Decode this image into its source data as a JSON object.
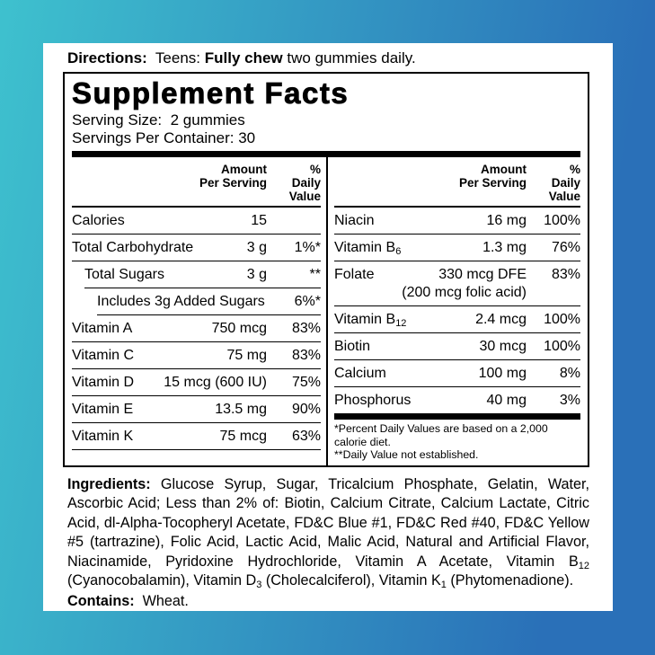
{
  "colors": {
    "gradient_left_teal": "#3EC1CE",
    "gradient_right_blue": "#2A70B8",
    "panel_background": "#FFFFFF",
    "text": "#000000"
  },
  "directions": {
    "label": "Directions:",
    "pre": "  Teens: ",
    "emphasis": "Fully chew",
    "post": " two gummies daily."
  },
  "sf": {
    "title": "Supplement Facts",
    "serving_size": "Serving Size:  2 gummies",
    "servings_per_container": "Servings Per Container: 30",
    "header": {
      "amount1": "Amount",
      "amount2": "Per Serving",
      "dv1": "% Daily",
      "dv2": "Value"
    },
    "left_rows": [
      {
        "name": "Calories",
        "amount": "15",
        "dv": "",
        "indent": 0
      },
      {
        "name": "Total Carbohydrate",
        "amount": "3 g",
        "dv": "1%*",
        "indent": 0
      },
      {
        "name": "Total Sugars",
        "amount": "3 g",
        "dv": "**",
        "indent": 1
      },
      {
        "name": "Includes 3g Added Sugars",
        "amount": "",
        "dv": "6%*",
        "indent": 2
      },
      {
        "name": "Vitamin A",
        "amount": "750 mcg",
        "dv": "83%",
        "indent": 0
      },
      {
        "name": "Vitamin C",
        "amount": "75 mg",
        "dv": "83%",
        "indent": 0
      },
      {
        "name": "Vitamin D",
        "amount": "15 mcg (600 IU)",
        "dv": "75%",
        "indent": 0
      },
      {
        "name": "Vitamin E",
        "amount": "13.5 mg",
        "dv": "90%",
        "indent": 0
      },
      {
        "name": "Vitamin K",
        "amount": "75 mcg",
        "dv": "63%",
        "indent": 0
      }
    ],
    "right_rows": [
      {
        "name": "Niacin",
        "amount": "16 mg",
        "dv": "100%"
      },
      {
        "name": "Vitamin B",
        "sub": "6",
        "amount": "1.3 mg",
        "dv": "76%"
      },
      {
        "name": "Folate",
        "amount": "330 mcg DFE",
        "amount2": "(200 mcg folic acid)",
        "dv": "83%"
      },
      {
        "name": "Vitamin B",
        "sub": "12",
        "amount": "2.4 mcg",
        "dv": "100%"
      },
      {
        "name": "Biotin",
        "amount": "30 mcg",
        "dv": "100%"
      },
      {
        "name": "Calcium",
        "amount": "100 mg",
        "dv": "8%"
      },
      {
        "name": "Phosphorus",
        "amount": "40 mg",
        "dv": "3%"
      }
    ],
    "footnotes": [
      "*Percent Daily Values are based on a 2,000 calorie diet.",
      "**Daily Value not established."
    ]
  },
  "ingredients": {
    "label": "Ingredients:",
    "segments": [
      {
        "text": " Glucose Syrup, Sugar, Tricalcium Phosphate, Gelatin, Water, Ascorbic Acid; Less than 2% of: Biotin, Calcium Citrate, Calcium Lactate, Citric Acid, dl-Alpha-Tocopheryl Acetate, FD&C Blue #1, FD&C Red #40, FD&C Yellow #5 (tartrazine), Folic Acid, Lactic Acid, Malic Acid, Natural and Artificial Flavor, Niacinamide, Pyridoxine Hydrochloride, Vitamin A Acetate, Vitamin B"
      },
      {
        "text": "12",
        "sub": true
      },
      {
        "text": " (Cyanocobalamin), Vitamin D"
      },
      {
        "text": "3",
        "sub": true
      },
      {
        "text": " (Cholecalciferol), Vitamin K"
      },
      {
        "text": "1",
        "sub": true
      },
      {
        "text": " (Phytomenadione)."
      }
    ]
  },
  "contains": {
    "label": "Contains:",
    "text": "  Wheat."
  }
}
